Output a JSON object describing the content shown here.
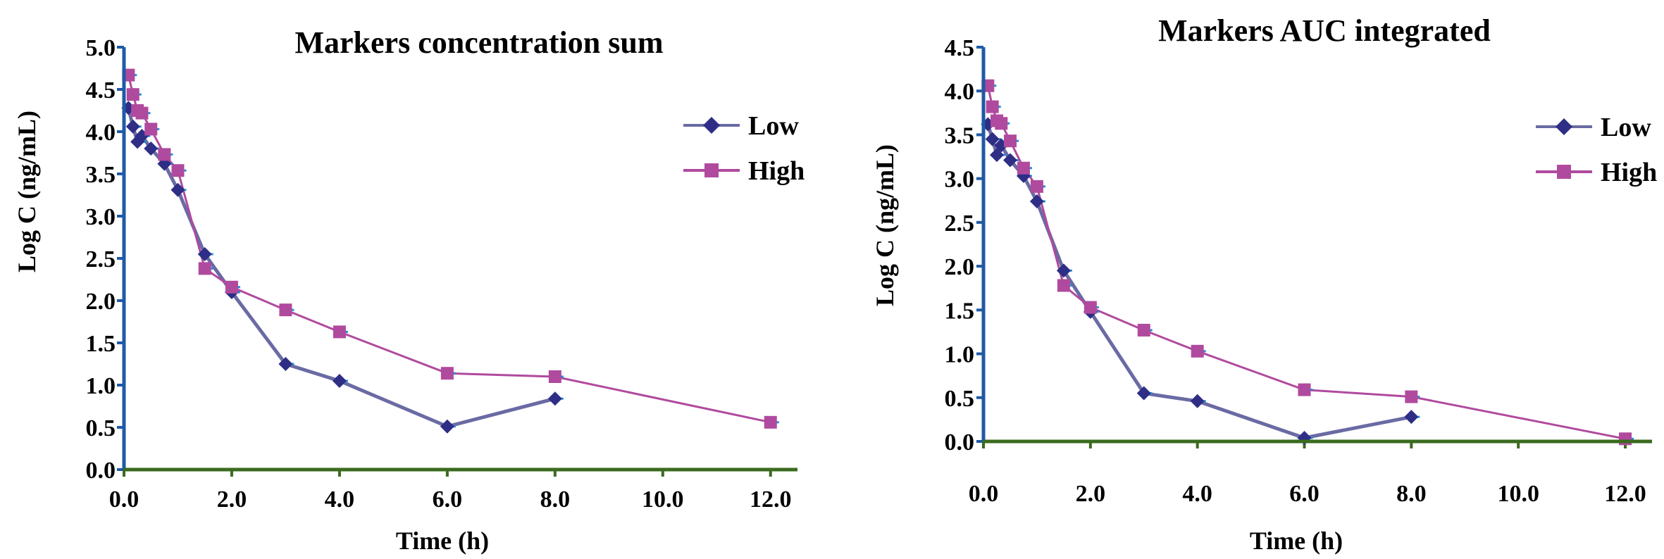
{
  "chart_data": [
    {
      "type": "line",
      "title": "Markers concentration sum",
      "xlabel": "Time (h)",
      "ylabel": "Log C (ng/mL)",
      "xlim": [
        0,
        12.5
      ],
      "ylim": [
        0,
        5.0
      ],
      "xticks": [
        "0.0",
        "2.0",
        "4.0",
        "6.0",
        "8.0",
        "10.0",
        "12.0"
      ],
      "yticks": [
        "0.0",
        "0.5",
        "1.0",
        "1.5",
        "2.0",
        "2.5",
        "3.0",
        "3.5",
        "4.0",
        "4.5",
        "5.0"
      ],
      "legend": "top-right",
      "series": [
        {
          "name": "Low",
          "color": "#2e2e86",
          "line_color": "#6a6aa4",
          "marker": "diamond",
          "x": [
            0.083,
            0.167,
            0.25,
            0.333,
            0.5,
            0.75,
            1.0,
            1.5,
            2.0,
            3.0,
            4.0,
            6.0,
            8.0
          ],
          "y": [
            4.28,
            4.06,
            3.88,
            3.95,
            3.8,
            3.62,
            3.31,
            2.55,
            2.1,
            1.25,
            1.05,
            0.51,
            0.84
          ]
        },
        {
          "name": "High",
          "color": "#b04a9e",
          "line_color": "#b04a9e",
          "marker": "square",
          "x": [
            0.083,
            0.167,
            0.25,
            0.333,
            0.5,
            0.75,
            1.0,
            1.5,
            2.0,
            3.0,
            4.0,
            6.0,
            8.0,
            12.0
          ],
          "y": [
            4.67,
            4.44,
            4.25,
            4.22,
            4.03,
            3.73,
            3.54,
            2.38,
            2.16,
            1.89,
            1.63,
            1.14,
            1.1,
            0.56
          ]
        }
      ]
    },
    {
      "type": "line",
      "title": "Markers AUC integrated",
      "xlabel": "Time (h)",
      "ylabel": "Log C (ng/mL)",
      "xlim": [
        0,
        12.5
      ],
      "ylim": [
        0,
        4.5
      ],
      "xticks": [
        "0.0",
        "2.0",
        "4.0",
        "6.0",
        "8.0",
        "10.0",
        "12.0"
      ],
      "yticks": [
        "0.0",
        "0.5",
        "1.0",
        "1.5",
        "2.0",
        "2.5",
        "3.0",
        "3.5",
        "4.0",
        "4.5"
      ],
      "legend": "top-right",
      "series": [
        {
          "name": "Low",
          "color": "#2e2e86",
          "line_color": "#6a6aa4",
          "marker": "diamond",
          "x": [
            0.083,
            0.167,
            0.25,
            0.333,
            0.5,
            0.75,
            1.0,
            1.5,
            2.0,
            3.0,
            4.0,
            6.0,
            8.0
          ],
          "y": [
            3.62,
            3.45,
            3.27,
            3.38,
            3.21,
            3.03,
            2.74,
            1.95,
            1.48,
            0.55,
            0.46,
            0.04,
            0.28
          ]
        },
        {
          "name": "High",
          "color": "#b04a9e",
          "line_color": "#b04a9e",
          "marker": "square",
          "x": [
            0.083,
            0.167,
            0.25,
            0.333,
            0.5,
            0.75,
            1.0,
            1.5,
            2.0,
            3.0,
            4.0,
            6.0,
            8.0,
            12.0
          ],
          "y": [
            4.06,
            3.82,
            3.66,
            3.63,
            3.43,
            3.12,
            2.91,
            1.78,
            1.53,
            1.27,
            1.03,
            0.59,
            0.51,
            0.03
          ]
        }
      ]
    }
  ]
}
